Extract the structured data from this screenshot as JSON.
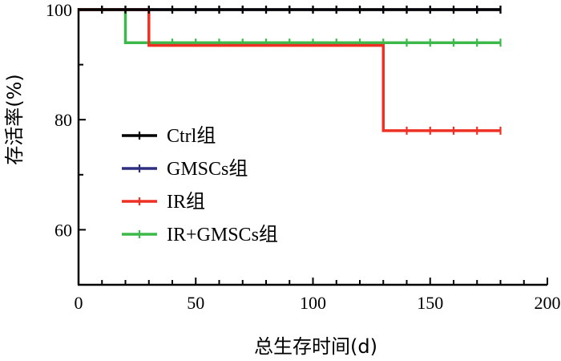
{
  "chart_data": {
    "type": "line",
    "xlabel": "总生存时间(d)",
    "ylabel": "存活率(%)",
    "xlim": [
      0,
      200
    ],
    "ylim": [
      50,
      100
    ],
    "x_ticks": [
      0,
      50,
      100,
      150,
      200
    ],
    "y_ticks": [
      60,
      80,
      100
    ],
    "grid": false,
    "legend_position": "left",
    "series": [
      {
        "name": "Ctrl组",
        "color": "#000000",
        "steps": [
          [
            0,
            100
          ],
          [
            180,
            100
          ]
        ],
        "censor_x": [
          10,
          20,
          30,
          40,
          50,
          60,
          70,
          80,
          90,
          100,
          110,
          120,
          130,
          140,
          150,
          160,
          170,
          180
        ]
      },
      {
        "name": "GMSCs组",
        "color": "#2e2f7f",
        "steps": [
          [
            0,
            100
          ],
          [
            180,
            100
          ]
        ],
        "censor_x": [
          10,
          20,
          30,
          40,
          50,
          60,
          70,
          80,
          90,
          100,
          110,
          120,
          130,
          140,
          150,
          160,
          170,
          180
        ]
      },
      {
        "name": "IR组",
        "color": "#ee3124",
        "steps": [
          [
            0,
            100
          ],
          [
            30,
            100
          ],
          [
            30,
            93.5
          ],
          [
            130,
            93.5
          ],
          [
            130,
            78
          ],
          [
            180,
            78
          ]
        ],
        "censor_x": [
          140,
          150,
          160,
          170,
          180
        ]
      },
      {
        "name": "IR+GMSCs组",
        "color": "#3cb94a",
        "steps": [
          [
            0,
            100
          ],
          [
            20,
            100
          ],
          [
            20,
            94
          ],
          [
            180,
            94
          ]
        ],
        "censor_x": [
          40,
          50,
          60,
          70,
          80,
          90,
          100,
          110,
          120,
          130,
          140,
          150,
          160,
          170,
          180
        ]
      }
    ]
  }
}
